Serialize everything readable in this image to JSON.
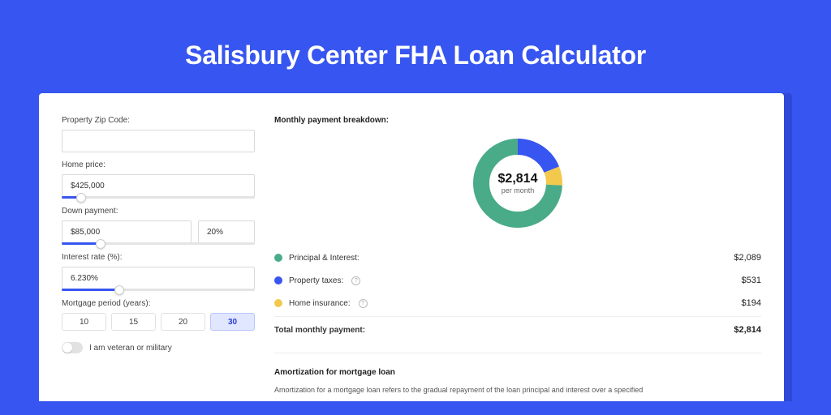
{
  "title": "Salisbury Center FHA Loan Calculator",
  "colors": {
    "brand": "#3755f0",
    "shadow": "#2f48d8",
    "principal": "#4aab89",
    "taxes": "#3755f0",
    "insurance": "#f2c94c"
  },
  "form": {
    "zip": {
      "label": "Property Zip Code:",
      "value": ""
    },
    "home_price": {
      "label": "Home price:",
      "value": "$425,000",
      "slider_pct": 10
    },
    "down_payment": {
      "label": "Down payment:",
      "value": "$85,000",
      "pct_value": "20%",
      "slider_pct": 20
    },
    "interest_rate": {
      "label": "Interest rate (%):",
      "value": "6.230%",
      "slider_pct": 30
    },
    "mortgage_period": {
      "label": "Mortgage period (years):",
      "options": [
        "10",
        "15",
        "20",
        "30"
      ],
      "selected": "30"
    },
    "veteran": {
      "label": "I am veteran or military",
      "checked": false
    }
  },
  "breakdown": {
    "heading": "Monthly payment breakdown:",
    "donut": {
      "amount": "$2,814",
      "sub": "per month"
    },
    "segments": [
      {
        "key": "principal",
        "label": "Principal & Interest:",
        "value_text": "$2,089",
        "value": 2089,
        "color": "#4aab89",
        "tooltip": false
      },
      {
        "key": "taxes",
        "label": "Property taxes:",
        "value_text": "$531",
        "value": 531,
        "color": "#3755f0",
        "tooltip": true
      },
      {
        "key": "insurance",
        "label": "Home insurance:",
        "value_text": "$194",
        "value": 194,
        "color": "#f2c94c",
        "tooltip": true
      }
    ],
    "total": {
      "label": "Total monthly payment:",
      "value_text": "$2,814",
      "value": 2814
    }
  },
  "amortization": {
    "heading": "Amortization for mortgage loan",
    "text": "Amortization for a mortgage loan refers to the gradual repayment of the loan principal and interest over a specified"
  }
}
